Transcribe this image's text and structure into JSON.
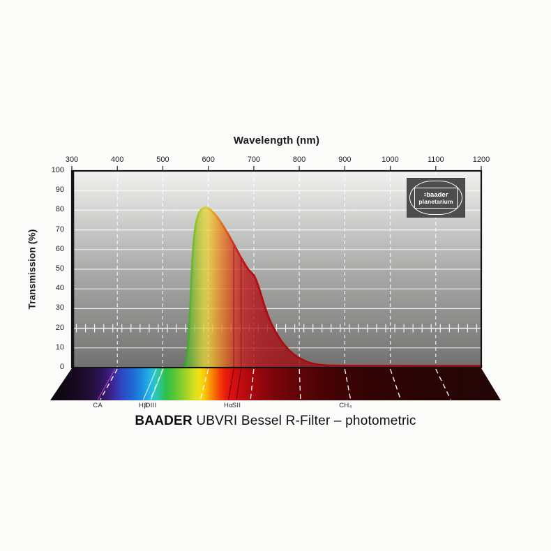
{
  "chart_data": {
    "type": "area",
    "title": {
      "brand": "BAADER",
      "rest": " UBVRI Bessel R-Filter – photometric"
    },
    "xlabel": "Wavelength (nm)",
    "ylabel": "Transmission (%)",
    "xlim": [
      300,
      1200
    ],
    "ylim": [
      0,
      100
    ],
    "x_ticks": [
      300,
      400,
      500,
      600,
      700,
      800,
      900,
      1000,
      1100,
      1200
    ],
    "y_ticks": [
      0,
      10,
      20,
      30,
      40,
      50,
      60,
      70,
      80,
      90,
      100
    ],
    "grid": {
      "horizontal": "solid-white",
      "vertical": "dashed-white"
    },
    "ruler": {
      "percent": 20,
      "tick_step_nm": 20,
      "tick_start_nm": 310,
      "tick_end_nm": 1190
    },
    "series": [
      {
        "name": "R-filter transmission",
        "points": [
          [
            540,
            0
          ],
          [
            545,
            0.4
          ],
          [
            548,
            1.2
          ],
          [
            551,
            3
          ],
          [
            553,
            6
          ],
          [
            555,
            10
          ],
          [
            557,
            16
          ],
          [
            559,
            24
          ],
          [
            561,
            34
          ],
          [
            563,
            45
          ],
          [
            565,
            54
          ],
          [
            567,
            61
          ],
          [
            569,
            66.5
          ],
          [
            571,
            70.5
          ],
          [
            574,
            74.5
          ],
          [
            577,
            77
          ],
          [
            580,
            78.8
          ],
          [
            584,
            80.1
          ],
          [
            588,
            80.9
          ],
          [
            592,
            81.3
          ],
          [
            596,
            81.3
          ],
          [
            600,
            80.9
          ],
          [
            605,
            80.1
          ],
          [
            610,
            79
          ],
          [
            616,
            77.5
          ],
          [
            622,
            75.7
          ],
          [
            628,
            73.7
          ],
          [
            634,
            71.5
          ],
          [
            640,
            69.2
          ],
          [
            646,
            66.8
          ],
          [
            652,
            64.3
          ],
          [
            658,
            61.8
          ],
          [
            664,
            59.2
          ],
          [
            670,
            56.6
          ],
          [
            676,
            54.3
          ],
          [
            682,
            52
          ],
          [
            688,
            49.8
          ],
          [
            694,
            48.4
          ],
          [
            700,
            47
          ],
          [
            706,
            44
          ],
          [
            712,
            40
          ],
          [
            718,
            35.5
          ],
          [
            724,
            31
          ],
          [
            730,
            27
          ],
          [
            736,
            23.5
          ],
          [
            742,
            20.7
          ],
          [
            748,
            18.2
          ],
          [
            754,
            15.8
          ],
          [
            760,
            13.6
          ],
          [
            766,
            11.8
          ],
          [
            772,
            10.2
          ],
          [
            778,
            8.7
          ],
          [
            784,
            7.4
          ],
          [
            790,
            6.3
          ],
          [
            796,
            5.4
          ],
          [
            802,
            4.6
          ],
          [
            810,
            3.6
          ],
          [
            818,
            2.8
          ],
          [
            826,
            2.2
          ],
          [
            836,
            1.7
          ],
          [
            848,
            1.3
          ],
          [
            862,
            1.05
          ],
          [
            880,
            0.95
          ],
          [
            900,
            0.9
          ],
          [
            950,
            0.85
          ],
          [
            1000,
            0.85
          ],
          [
            1100,
            0.8
          ],
          [
            1200,
            0.8
          ]
        ]
      }
    ],
    "marker_lines_in_plot": [
      {
        "nm": 656,
        "color": "#821016"
      },
      {
        "nm": 672,
        "color": "#821016"
      }
    ],
    "spectral_lines": [
      {
        "label": "CA",
        "nm": 395,
        "line_color": "#b13bb5"
      },
      {
        "label": "Hβ",
        "nm": 486,
        "line_color": "#cdeffc"
      },
      {
        "label": "OIII",
        "nm": 501,
        "line_color": "#c2f6e4"
      },
      {
        "label": "Hα",
        "nm": 656,
        "line_color": "#64060c"
      },
      {
        "label": "SII",
        "nm": 672,
        "line_color": "#64060c"
      },
      {
        "label": "CH₄",
        "nm": 890,
        "line_color": null
      }
    ],
    "logo": {
      "prefix": "‡",
      "line1": "baader",
      "line2": "planetarium"
    },
    "colors": {
      "plot_bg_stops": [
        {
          "off": 0,
          "c": "#f1f1f0"
        },
        {
          "off": 0.5,
          "c": "#ababaa"
        },
        {
          "off": 1,
          "c": "#727170"
        }
      ],
      "curve_fill_stops": [
        {
          "nm": 543,
          "c": "#46a83e"
        },
        {
          "nm": 556,
          "c": "#5fb13a"
        },
        {
          "nm": 568,
          "c": "#8abe34"
        },
        {
          "nm": 580,
          "c": "#bcca36"
        },
        {
          "nm": 590,
          "c": "#ddd23b"
        },
        {
          "nm": 598,
          "c": "#e9d13a"
        },
        {
          "nm": 606,
          "c": "#ecc133"
        },
        {
          "nm": 615,
          "c": "#eca829"
        },
        {
          "nm": 624,
          "c": "#e98f24"
        },
        {
          "nm": 634,
          "c": "#e47520"
        },
        {
          "nm": 645,
          "c": "#dd5a1e"
        },
        {
          "nm": 656,
          "c": "#d43f20"
        },
        {
          "nm": 668,
          "c": "#ca2a1f"
        },
        {
          "nm": 682,
          "c": "#c01d1e"
        },
        {
          "nm": 700,
          "c": "#b5141a"
        },
        {
          "nm": 730,
          "c": "#aa0f16"
        },
        {
          "nm": 780,
          "c": "#a00c12"
        },
        {
          "nm": 900,
          "c": "#960b10"
        },
        {
          "nm": 1200,
          "c": "#8a0a0e"
        }
      ],
      "curve_stroke_stops": [
        {
          "nm": 543,
          "c": "#2e9e33"
        },
        {
          "nm": 558,
          "c": "#4fae30"
        },
        {
          "nm": 572,
          "c": "#8fc12f"
        },
        {
          "nm": 584,
          "c": "#c9c835"
        },
        {
          "nm": 594,
          "c": "#e0ca36"
        },
        {
          "nm": 604,
          "c": "#e5b52c"
        },
        {
          "nm": 614,
          "c": "#e69b24"
        },
        {
          "nm": 625,
          "c": "#e3811f"
        },
        {
          "nm": 637,
          "c": "#dd611c"
        },
        {
          "nm": 650,
          "c": "#d4411b"
        },
        {
          "nm": 663,
          "c": "#c9261a"
        },
        {
          "nm": 678,
          "c": "#bf1617"
        },
        {
          "nm": 700,
          "c": "#b41015"
        },
        {
          "nm": 760,
          "c": "#a80d12"
        },
        {
          "nm": 1200,
          "c": "#9c0c10"
        }
      ],
      "floor_stops": [
        {
          "nm": 300,
          "c": "#0e0712"
        },
        {
          "nm": 340,
          "c": "#1a0a26"
        },
        {
          "nm": 370,
          "c": "#271043"
        },
        {
          "nm": 390,
          "c": "#311764"
        },
        {
          "nm": 400,
          "c": "#3a1d7e"
        },
        {
          "nm": 415,
          "c": "#3930a8"
        },
        {
          "nm": 430,
          "c": "#2c4cc4"
        },
        {
          "nm": 450,
          "c": "#2069d6"
        },
        {
          "nm": 468,
          "c": "#1d8ade"
        },
        {
          "nm": 486,
          "c": "#24b4e4"
        },
        {
          "nm": 497,
          "c": "#2ac8c0"
        },
        {
          "nm": 508,
          "c": "#2cc487"
        },
        {
          "nm": 520,
          "c": "#2fbf49"
        },
        {
          "nm": 535,
          "c": "#51c636"
        },
        {
          "nm": 550,
          "c": "#7ecd2d"
        },
        {
          "nm": 565,
          "c": "#abd626"
        },
        {
          "nm": 578,
          "c": "#d4de1f"
        },
        {
          "nm": 590,
          "c": "#f2e112"
        },
        {
          "nm": 600,
          "c": "#fbc80b"
        },
        {
          "nm": 610,
          "c": "#fa9e06"
        },
        {
          "nm": 621,
          "c": "#f77105"
        },
        {
          "nm": 633,
          "c": "#f23c06"
        },
        {
          "nm": 645,
          "c": "#e81d0d"
        },
        {
          "nm": 658,
          "c": "#da0f10"
        },
        {
          "nm": 672,
          "c": "#c90c10"
        },
        {
          "nm": 690,
          "c": "#b20a0f"
        },
        {
          "nm": 715,
          "c": "#96070c"
        },
        {
          "nm": 750,
          "c": "#7a050a"
        },
        {
          "nm": 800,
          "c": "#5e0407"
        },
        {
          "nm": 860,
          "c": "#460305"
        },
        {
          "nm": 940,
          "c": "#330304"
        },
        {
          "nm": 1040,
          "c": "#2a0405"
        },
        {
          "nm": 1200,
          "c": "#240505"
        }
      ]
    }
  }
}
